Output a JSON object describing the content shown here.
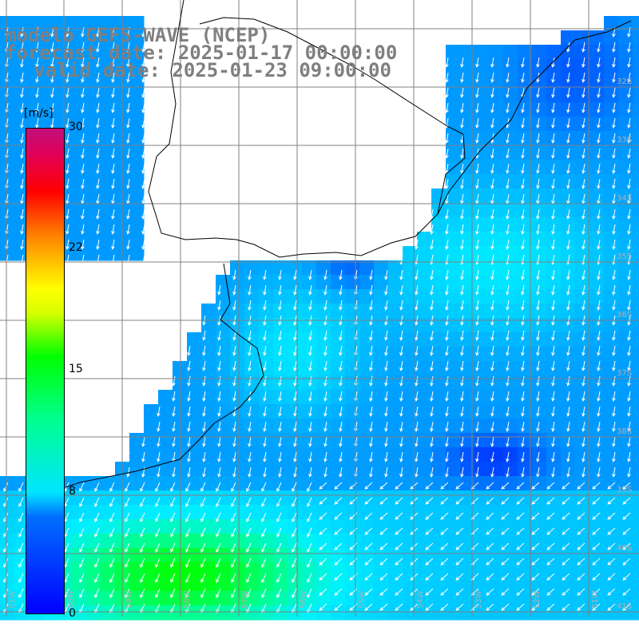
{
  "header": {
    "line1": "modelo GEFS-WAVE (NCEP)",
    "line2": "forecast date: 2025-01-17 00:00:00",
    "line3": "valid date: 2025-01-23 09:00:00"
  },
  "colorbar": {
    "unit": "[m/s]",
    "ticks": [
      "30",
      "22",
      "15",
      "8",
      "0"
    ],
    "tick_values": [
      30,
      22,
      15,
      8,
      0
    ],
    "range": [
      0,
      30
    ]
  },
  "map": {
    "lat_labels": [
      "32S",
      "33S",
      "34S",
      "35S",
      "36S",
      "37S",
      "38S",
      "39S",
      "40S",
      "41S"
    ],
    "lon_labels": [
      "61W",
      "60W",
      "59W",
      "58W",
      "57W",
      "56W",
      "55W",
      "54W",
      "53W",
      "52W",
      "51W"
    ],
    "colors": {
      "land": "#ffffff",
      "grid": "#808080",
      "coast": "#000000",
      "arrow": "#ffffff",
      "header_text": "#7f7f7f"
    }
  }
}
